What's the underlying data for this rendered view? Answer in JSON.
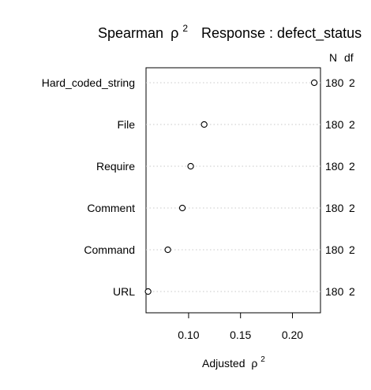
{
  "chart_data": {
    "type": "scatter",
    "title_main": "Spearman",
    "title_rho": "ρ",
    "title_sup": "2",
    "title_response": "Response : defect_status",
    "col_header_n": "N",
    "col_header_df": "df",
    "xlabel": "Adjusted",
    "xlabel_rho": "ρ",
    "xlabel_sup": "2",
    "xlim": [
      0.059,
      0.227
    ],
    "xticks": [
      {
        "value": 0.1,
        "label": "0.10"
      },
      {
        "value": 0.15,
        "label": "0.15"
      },
      {
        "value": 0.2,
        "label": "0.20"
      }
    ],
    "categories": [
      "Hard_coded_string",
      "File",
      "Require",
      "Comment",
      "Command",
      "URL"
    ],
    "values": [
      0.221,
      0.115,
      0.102,
      0.094,
      0.08,
      0.061
    ],
    "n": [
      "180",
      "180",
      "180",
      "180",
      "180",
      "180"
    ],
    "df": [
      "2",
      "2",
      "2",
      "2",
      "2",
      "2"
    ],
    "grid": "dotted horizontal"
  }
}
